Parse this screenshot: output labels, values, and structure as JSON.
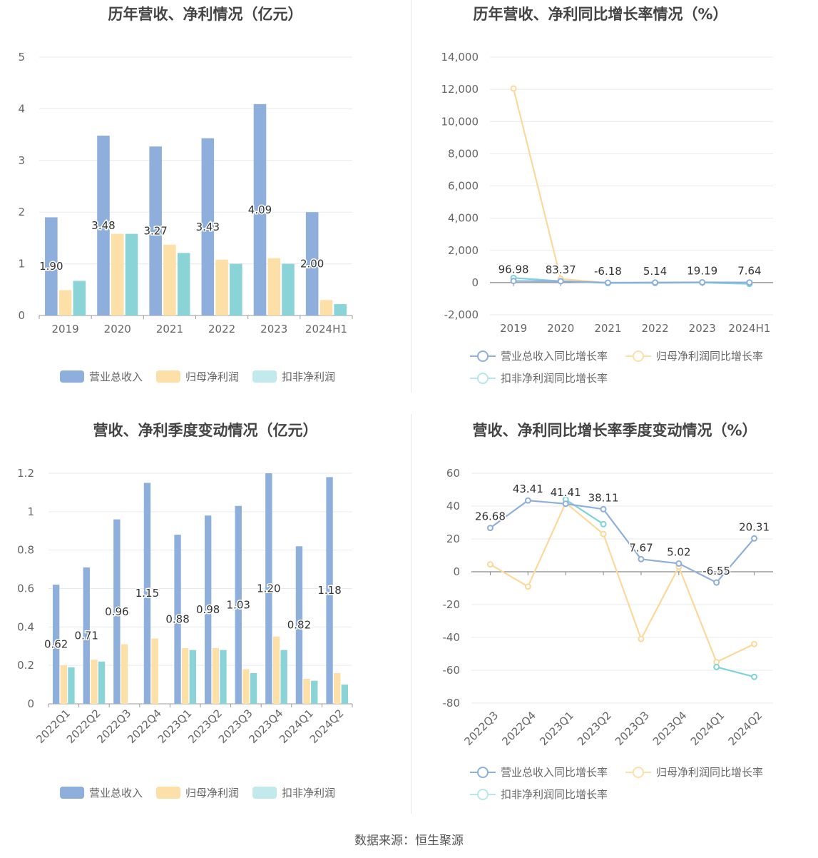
{
  "source": "数据来源：恒生聚源",
  "colors": {
    "revenue": "#8eaedb",
    "parent_profit": "#fde0a8",
    "deducted_profit": "#8ad4d8",
    "revenue_line": "#8eaedb",
    "parent_line": "#fcd99a",
    "deducted_line": "#7dd3d8"
  },
  "chart_data": [
    {
      "id": "annual_amount",
      "type": "bar",
      "title": "历年营收、净利情况（亿元）",
      "categories": [
        "2019",
        "2020",
        "2021",
        "2022",
        "2023",
        "2024H1"
      ],
      "ylim": [
        0,
        5
      ],
      "yticks": [
        "0",
        "1",
        "2",
        "3",
        "4",
        "5"
      ],
      "series": [
        {
          "name": "营业总收入",
          "values": [
            1.9,
            3.48,
            3.27,
            3.43,
            4.09,
            2.0
          ],
          "labels": [
            "1.90",
            "3.48",
            "3.27",
            "3.43",
            "4.09",
            "2.00"
          ]
        },
        {
          "name": "归母净利润",
          "values": [
            0.49,
            1.58,
            1.37,
            1.08,
            1.11,
            0.3
          ]
        },
        {
          "name": "扣非净利润",
          "values": [
            0.67,
            1.58,
            1.21,
            1.0,
            1.0,
            0.22
          ]
        }
      ],
      "grid": true,
      "legend": "bottom"
    },
    {
      "id": "annual_growth",
      "type": "line",
      "title": "历年营收、净利同比增长率情况（%）",
      "categories": [
        "2019",
        "2020",
        "2021",
        "2022",
        "2023",
        "2024H1"
      ],
      "ylim": [
        -2000,
        14000
      ],
      "yticks": [
        "-2,000",
        "0",
        "2,000",
        "4,000",
        "6,000",
        "8,000",
        "10,000",
        "12,000",
        "14,000"
      ],
      "series": [
        {
          "name": "营业总收入同比增长率",
          "values": [
            96.98,
            83.37,
            -6.18,
            5.14,
            19.19,
            7.64
          ],
          "labels": [
            "96.98",
            "83.37",
            "-6.18",
            "5.14",
            "19.19",
            "7.64"
          ]
        },
        {
          "name": "归母净利润同比增长率",
          "values": [
            12050,
            230,
            -20,
            -30,
            5,
            -75
          ]
        },
        {
          "name": "扣非净利润同比增长率",
          "values": [
            290,
            90,
            -30,
            -20,
            0,
            -80
          ]
        }
      ],
      "grid": true,
      "legend": "bottom"
    },
    {
      "id": "quarterly_amount",
      "type": "bar",
      "title": "营收、净利季度变动情况（亿元）",
      "categories": [
        "2022Q1",
        "2022Q2",
        "2022Q3",
        "2022Q4",
        "2023Q1",
        "2023Q2",
        "2023Q3",
        "2023Q4",
        "2024Q1",
        "2024Q2"
      ],
      "ylim": [
        0,
        1.2
      ],
      "yticks": [
        "0",
        "0.2",
        "0.4",
        "0.6",
        "0.8",
        "1",
        "1.2"
      ],
      "series": [
        {
          "name": "营业总收入",
          "values": [
            0.62,
            0.71,
            0.96,
            1.15,
            0.88,
            0.98,
            1.03,
            1.2,
            0.82,
            1.18
          ],
          "labels": [
            "0.62",
            "0.71",
            "0.96",
            "1.15",
            "0.88",
            "0.98",
            "1.03",
            "1.20",
            "0.82",
            "1.18"
          ]
        },
        {
          "name": "归母净利润",
          "values": [
            0.2,
            0.23,
            0.31,
            0.34,
            0.29,
            0.29,
            0.18,
            0.35,
            0.13,
            0.16
          ]
        },
        {
          "name": "扣非净利润",
          "values": [
            0.19,
            0.22,
            null,
            null,
            0.28,
            0.28,
            0.16,
            0.28,
            0.12,
            0.1
          ]
        }
      ],
      "grid": true,
      "legend": "bottom"
    },
    {
      "id": "quarterly_growth",
      "type": "line",
      "title": "营收、净利同比增长率季度变动情况（%）",
      "categories": [
        "2022Q3",
        "2022Q4",
        "2023Q1",
        "2023Q2",
        "2023Q3",
        "2023Q4",
        "2024Q1",
        "2024Q2"
      ],
      "ylim": [
        -80,
        60
      ],
      "yticks": [
        "-80",
        "-60",
        "-40",
        "-20",
        "0",
        "20",
        "40",
        "60"
      ],
      "series": [
        {
          "name": "营业总收入同比增长率",
          "values": [
            26.68,
            43.41,
            41.41,
            38.11,
            7.67,
            5.02,
            -6.55,
            20.31
          ],
          "labels": [
            "26.68",
            "43.41",
            "41.41",
            "38.11",
            "7.67",
            "5.02",
            "-6.55",
            "20.31"
          ]
        },
        {
          "name": "归母净利润同比增长率",
          "values": [
            4.5,
            -9,
            42,
            23,
            -41,
            3,
            -55,
            -44
          ]
        },
        {
          "name": "扣非净利润同比增长率",
          "values": [
            null,
            null,
            44,
            29,
            null,
            null,
            -58,
            -64
          ]
        }
      ],
      "grid": true,
      "legend": "bottom"
    }
  ]
}
